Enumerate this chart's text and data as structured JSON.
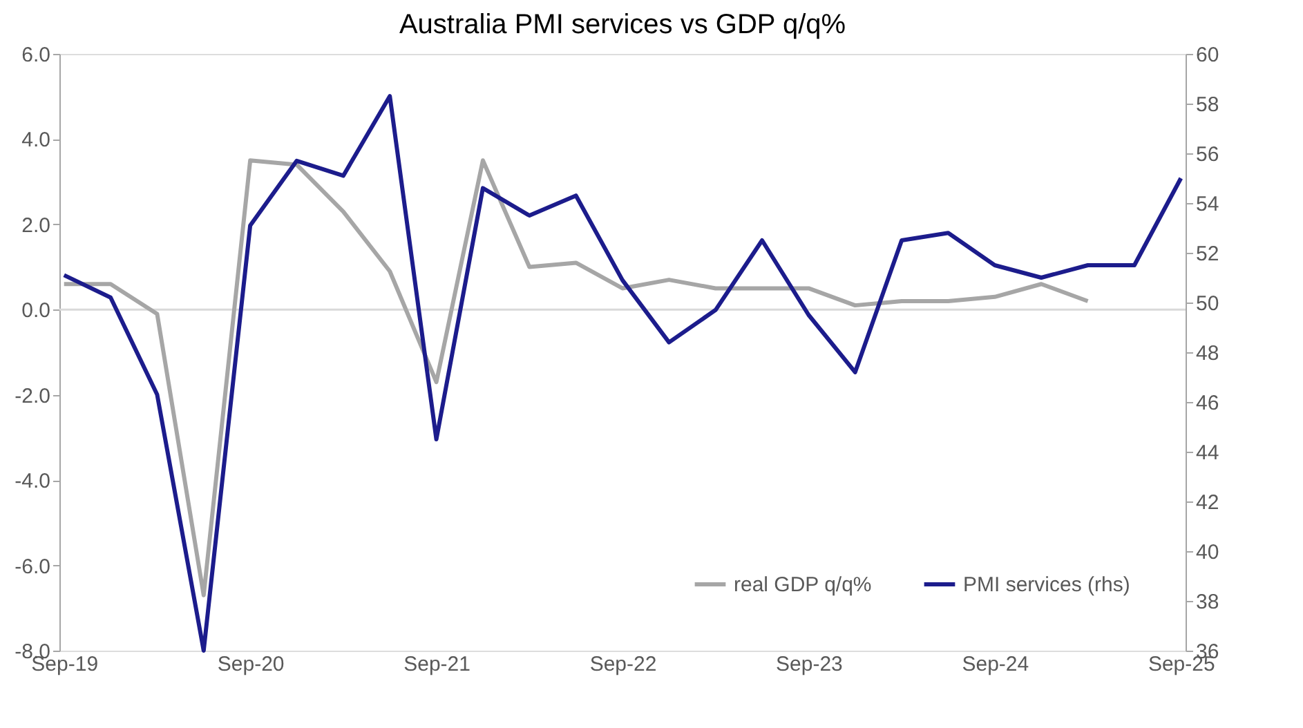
{
  "chart_data": {
    "type": "line",
    "title": "Australia PMI services vs GDP q/q%",
    "categories": [
      "Sep-19",
      null,
      null,
      null,
      "Sep-20",
      null,
      null,
      null,
      "Sep-21",
      null,
      null,
      null,
      "Sep-22",
      null,
      null,
      null,
      "Sep-23",
      null,
      null,
      null,
      "Sep-24",
      null,
      null,
      null,
      "Sep-25"
    ],
    "series": [
      {
        "name": "real GDP q/q%",
        "color": "#a6a6a6",
        "values": [
          0.6,
          0.6,
          -0.1,
          -6.7,
          3.5,
          3.4,
          2.3,
          0.9,
          -1.7,
          3.5,
          1.0,
          1.1,
          0.5,
          0.7,
          0.5,
          0.5,
          0.5,
          0.1,
          0.2,
          0.2,
          0.3,
          0.6,
          0.2,
          null,
          null
        ]
      },
      {
        "name": "PMI services (rhs)",
        "color": "#1c1c8c",
        "axis": "y2",
        "values": [
          51.1,
          50.2,
          46.3,
          36.0,
          53.1,
          55.7,
          55.1,
          58.3,
          44.5,
          54.6,
          53.5,
          54.3,
          50.9,
          48.4,
          49.7,
          52.5,
          49.5,
          47.2,
          52.5,
          52.8,
          51.5,
          51.0,
          51.5,
          51.5,
          55.0
        ]
      }
    ],
    "ylim": [
      -8,
      6
    ],
    "yticks": [
      {
        "value": -8,
        "label": "-8.0"
      },
      {
        "value": -6,
        "label": "-6.0"
      },
      {
        "value": -4,
        "label": "-4.0"
      },
      {
        "value": -2,
        "label": "-2.0"
      },
      {
        "value": 0,
        "label": "0.0"
      },
      {
        "value": 2,
        "label": "2.0"
      },
      {
        "value": 4,
        "label": "4.0"
      },
      {
        "value": 6,
        "label": "6.0"
      }
    ],
    "y2lim": [
      36,
      60
    ],
    "y2ticks": [
      36,
      38,
      40,
      42,
      44,
      46,
      48,
      50,
      52,
      54,
      56,
      58,
      60
    ],
    "ref_lines": [
      {
        "axis": "y",
        "value": 0,
        "color": "#d9d9d9"
      }
    ],
    "grid": false,
    "legend": "bottom right",
    "line_style": "solid",
    "marker": "none"
  }
}
